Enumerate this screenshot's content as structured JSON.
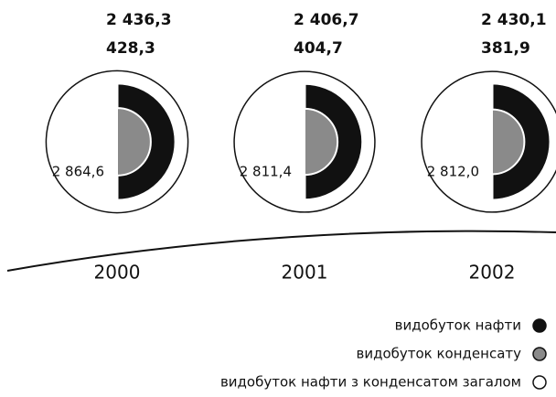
{
  "chart_data": {
    "type": "semicircle",
    "categories": [
      "2000",
      "2001",
      "2002"
    ],
    "series": [
      {
        "name": "видобуток нафти",
        "color": "#111111",
        "values": [
          2436.3,
          2406.7,
          2430.1
        ],
        "value_labels": [
          "2 436,3",
          "2 406,7",
          "2 430,1"
        ]
      },
      {
        "name": "видобуток конденсату",
        "color": "#8a8a8a",
        "values": [
          428.3,
          404.7,
          381.9
        ],
        "value_labels": [
          "428,3",
          "404,7",
          "381,9"
        ]
      },
      {
        "name": "видобуток нафти з конденсатом загалом",
        "color": "#ffffff",
        "values": [
          2864.6,
          2811.4,
          2812.0
        ],
        "value_labels": [
          "2 864,6",
          "2 811,4",
          "2 812,0"
        ]
      }
    ]
  }
}
